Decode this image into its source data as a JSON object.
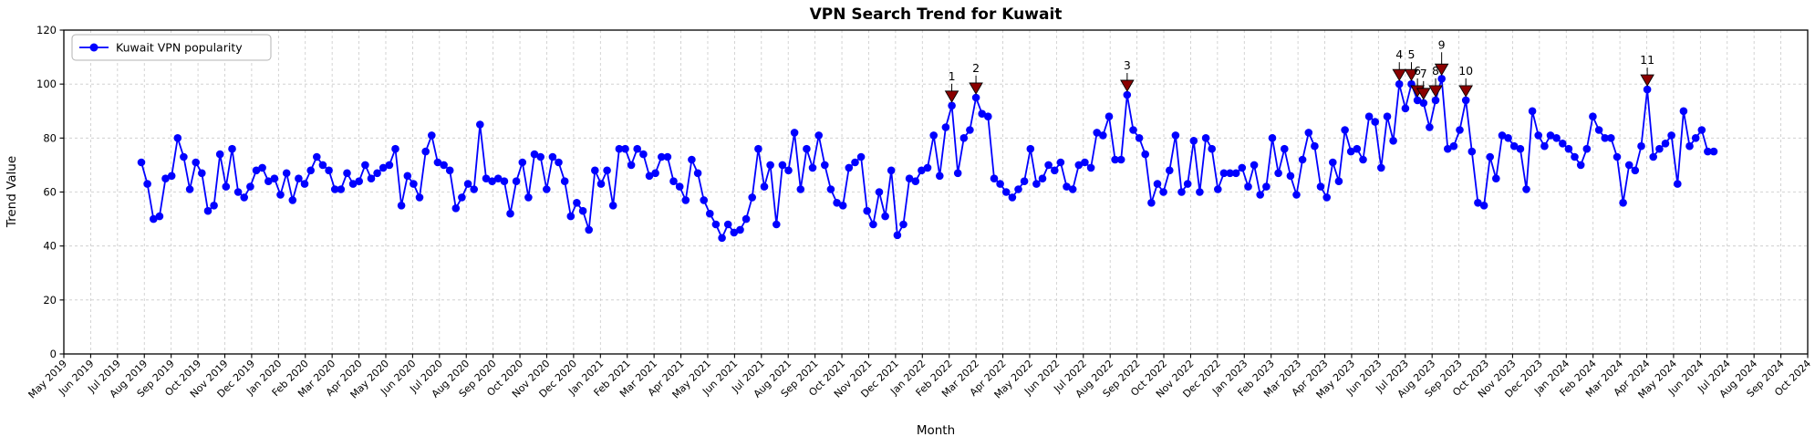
{
  "figure": {
    "title": "VPN Search Trend for Kuwait",
    "xlabel": "Month",
    "ylabel": "Trend Value",
    "legend_label": "Kuwait VPN popularity"
  },
  "colors": {
    "line": "#0000ff",
    "marker": "#0000ff",
    "annotation": "#8b0000",
    "annotation_edge": "#000000",
    "grid": "#c9c9c9",
    "spine": "#000000",
    "legend_border": "#b3b3b3",
    "background": "#ffffff"
  },
  "chart_data": {
    "type": "line",
    "title": "VPN Search Trend for Kuwait",
    "xlabel": "Month",
    "ylabel": "Trend Value",
    "legend": [
      "Kuwait VPN popularity"
    ],
    "legend_position": "upper left",
    "grid": true,
    "ylim": [
      0,
      120
    ],
    "y_ticks": [
      0,
      20,
      40,
      60,
      80,
      100,
      120
    ],
    "x_tick_labels": [
      "May 2019",
      "Jun 2019",
      "Jul 2019",
      "Aug 2019",
      "Sep 2019",
      "Oct 2019",
      "Nov 2019",
      "Dec 2019",
      "Jan 2020",
      "Feb 2020",
      "Mar 2020",
      "Apr 2020",
      "May 2020",
      "Jun 2020",
      "Jul 2020",
      "Aug 2020",
      "Sep 2020",
      "Oct 2020",
      "Nov 2020",
      "Dec 2020",
      "Jan 2021",
      "Feb 2021",
      "Mar 2021",
      "Apr 2021",
      "May 2021",
      "Jun 2021",
      "Jul 2021",
      "Aug 2021",
      "Sep 2021",
      "Oct 2021",
      "Nov 2021",
      "Dec 2021",
      "Jan 2022",
      "Feb 2022",
      "Mar 2022",
      "Apr 2022",
      "May 2022",
      "Jun 2022",
      "Jul 2022",
      "Aug 2022",
      "Sep 2022",
      "Oct 2022",
      "Nov 2022",
      "Dec 2022",
      "Jan 2023",
      "Feb 2023",
      "Mar 2023",
      "Apr 2023",
      "May 2023",
      "Jun 2023",
      "Jul 2023",
      "Aug 2023",
      "Sep 2023",
      "Oct 2023",
      "Nov 2023",
      "Dec 2023",
      "Jan 2024",
      "Feb 2024",
      "Mar 2024",
      "Apr 2024",
      "May 2024",
      "Jun 2024",
      "Jul 2024",
      "Aug 2024",
      "Sep 2024",
      "Oct 2024"
    ],
    "x_range_months": [
      2.89,
      61.5
    ],
    "series": [
      {
        "name": "Kuwait VPN popularity",
        "values": [
          71,
          63,
          50,
          51,
          65,
          66,
          80,
          73,
          61,
          71,
          67,
          53,
          55,
          74,
          62,
          76,
          60,
          58,
          62,
          68,
          69,
          64,
          65,
          59,
          67,
          57,
          65,
          63,
          68,
          73,
          70,
          68,
          61,
          61,
          67,
          63,
          64,
          70,
          65,
          67,
          69,
          70,
          76,
          55,
          66,
          63,
          58,
          75,
          81,
          71,
          70,
          68,
          54,
          58,
          63,
          61,
          85,
          65,
          64,
          65,
          64,
          52,
          64,
          71,
          58,
          74,
          73,
          61,
          73,
          71,
          64,
          51,
          56,
          53,
          46,
          68,
          63,
          68,
          55,
          76,
          76,
          70,
          76,
          74,
          66,
          67,
          73,
          73,
          64,
          62,
          57,
          72,
          67,
          57,
          52,
          48,
          43,
          48,
          45,
          46,
          50,
          58,
          76,
          62,
          70,
          48,
          70,
          68,
          82,
          61,
          76,
          69,
          81,
          70,
          61,
          56,
          55,
          69,
          71,
          73,
          53,
          48,
          60,
          51,
          68,
          44,
          48,
          65,
          64,
          68,
          69,
          81,
          66,
          84,
          92,
          67,
          80,
          83,
          95,
          89,
          88,
          65,
          63,
          60,
          58,
          61,
          64,
          76,
          63,
          65,
          70,
          68,
          71,
          62,
          61,
          70,
          71,
          69,
          82,
          81,
          88,
          72,
          72,
          96,
          83,
          80,
          74,
          56,
          63,
          60,
          68,
          81,
          60,
          63,
          79,
          60,
          80,
          76,
          61,
          67,
          67,
          67,
          69,
          62,
          70,
          59,
          62,
          80,
          67,
          76,
          66,
          59,
          72,
          82,
          77,
          62,
          58,
          71,
          64,
          83,
          75,
          76,
          72,
          88,
          86,
          69,
          88,
          79,
          100,
          91,
          100,
          94,
          93,
          84,
          94,
          102,
          76,
          77,
          83,
          94,
          75,
          56,
          55,
          73,
          65,
          81,
          80,
          77,
          76,
          61,
          90,
          81,
          77,
          81,
          80,
          78,
          76,
          73,
          70,
          76,
          88,
          83,
          80,
          80,
          73,
          56,
          70,
          68,
          77,
          98,
          73,
          76,
          78,
          81,
          63,
          90,
          77,
          80,
          83,
          75,
          75
        ]
      }
    ],
    "annotations": [
      {
        "label": "1",
        "index": 134,
        "dy": 0
      },
      {
        "label": "2",
        "index": 138,
        "dy": 0
      },
      {
        "label": "3",
        "index": 163,
        "dy": 0
      },
      {
        "label": "4",
        "index": 208,
        "dy": 0
      },
      {
        "label": "5",
        "index": 210,
        "dy": 0
      },
      {
        "label": "6",
        "index": 211,
        "dy": 0
      },
      {
        "label": "7",
        "index": 212,
        "dy": 0
      },
      {
        "label": "8",
        "index": 214,
        "dy": 0
      },
      {
        "label": "9",
        "index": 215,
        "dy": -5
      },
      {
        "label": "10",
        "index": 219,
        "dy": 0
      },
      {
        "label": "11",
        "index": 249,
        "dy": 0
      }
    ]
  }
}
